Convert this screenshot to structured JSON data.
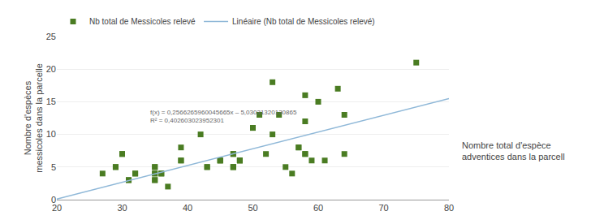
{
  "chart_data": {
    "type": "scatter",
    "ylabel": "Nombre d'espèces\nmessicoles dans la parcelle",
    "xlabel": "Nombre total d'espèce\nadventices dans la parcell",
    "series": [
      {
        "name": "Nb total de Messicoles relevé",
        "type": "scatter",
        "marker": "square",
        "color": "#4a7c22",
        "x": [
          27,
          29,
          29,
          30,
          30,
          31,
          31,
          32,
          32,
          35,
          35,
          35,
          35,
          35,
          35,
          36,
          36,
          37,
          39,
          39,
          39,
          42,
          43,
          43,
          45,
          45,
          45,
          47,
          47,
          47,
          47,
          47,
          48,
          48,
          48,
          50,
          50,
          51,
          52,
          53,
          53,
          54,
          55,
          56,
          57,
          57,
          58,
          58,
          58,
          58,
          59,
          60,
          61,
          63,
          64,
          64,
          75
        ],
        "values": [
          4,
          5,
          5,
          7,
          7,
          3,
          3,
          4,
          4,
          5,
          5,
          4,
          4,
          3,
          3,
          4,
          4,
          2,
          8,
          6,
          6,
          10,
          5,
          5,
          6,
          6,
          6,
          7,
          7,
          5,
          5,
          5,
          6,
          6,
          6,
          11,
          11,
          13,
          7,
          18,
          10,
          13,
          5,
          4,
          8,
          8,
          7,
          7,
          16,
          12,
          6,
          15,
          6,
          17,
          13,
          7,
          21
        ]
      },
      {
        "name": "Linéaire (Nb total de Messicoles relevé)",
        "type": "line",
        "line_style": "solid",
        "color": "#8fb8d8",
        "x": [
          20,
          80
        ],
        "values": [
          0.10221871878268,
          15.49981447905667
        ]
      }
    ],
    "annotations": [
      {
        "text": "f(x) = 0,2566265960045665x – 5,03031320130865\nR² = 0,402603023952301",
        "x": 34,
        "y": 14.2
      }
    ],
    "xlim": [
      20,
      80
    ],
    "ylim": [
      0,
      25
    ],
    "xticks": [
      20,
      30,
      40,
      50,
      60,
      70,
      80
    ],
    "yticks": [
      0,
      5,
      10,
      15,
      20,
      25
    ],
    "grid": "y",
    "legend": "top"
  }
}
